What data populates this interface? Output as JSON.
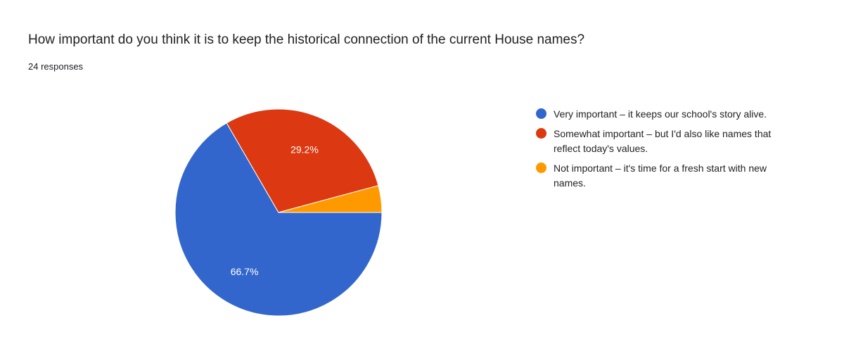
{
  "header": {
    "title": "How important do you think it is to keep the historical connection of the current House names?",
    "responses": "24 responses"
  },
  "chart_data": {
    "type": "pie",
    "title": "How important do you think it is to keep the historical connection of the current House names?",
    "legend_position": "right",
    "slices": [
      {
        "label": "Very important – it keeps our school's story alive.",
        "value": 66.7,
        "count": 16,
        "data_label": "66.7%",
        "color": "#3366cc"
      },
      {
        "label": "Somewhat important – but I'd also like names that reflect today's values.",
        "value": 29.2,
        "count": 7,
        "data_label": "29.2%",
        "color": "#dc3912"
      },
      {
        "label": "Not important – it's time for a fresh start with new names.",
        "value": 4.2,
        "count": 1,
        "data_label": "",
        "color": "#ff9900"
      }
    ]
  }
}
